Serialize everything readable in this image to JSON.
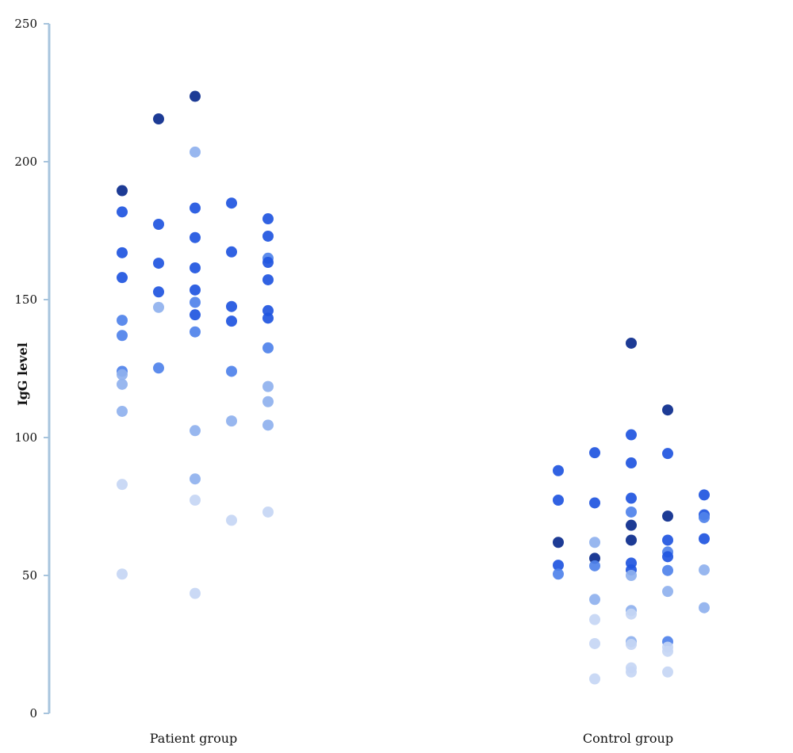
{
  "chart_data": {
    "type": "scatter",
    "title": "",
    "xlabel": "",
    "ylabel": "IgG level",
    "ylim": [
      0,
      250
    ],
    "yticks": [
      0,
      50,
      100,
      150,
      200,
      250
    ],
    "categories": [
      "Patient group",
      "Control group"
    ],
    "grid": false,
    "legend": "none",
    "colors": {
      "axis": "#a7c4dd",
      "dark": "#0a2a8c",
      "mid": "#1f55e0",
      "medium": "#4f82ea",
      "light": "#8fb1ee",
      "pale": "#c5d6f4"
    },
    "series": [
      {
        "category": "Patient group",
        "points": [
          {
            "col": 1,
            "y": 189.5,
            "shade": "dark"
          },
          {
            "col": 1,
            "y": 181.8,
            "shade": "mid"
          },
          {
            "col": 1,
            "y": 167.0,
            "shade": "mid"
          },
          {
            "col": 1,
            "y": 158.0,
            "shade": "mid"
          },
          {
            "col": 1,
            "y": 142.5,
            "shade": "medium"
          },
          {
            "col": 1,
            "y": 137.0,
            "shade": "medium"
          },
          {
            "col": 1,
            "y": 124.0,
            "shade": "medium"
          },
          {
            "col": 1,
            "y": 122.8,
            "shade": "light"
          },
          {
            "col": 1,
            "y": 119.3,
            "shade": "light"
          },
          {
            "col": 1,
            "y": 109.5,
            "shade": "light"
          },
          {
            "col": 1,
            "y": 83.0,
            "shade": "pale"
          },
          {
            "col": 1,
            "y": 50.5,
            "shade": "pale"
          },
          {
            "col": 2,
            "y": 215.5,
            "shade": "dark"
          },
          {
            "col": 2,
            "y": 177.3,
            "shade": "mid"
          },
          {
            "col": 2,
            "y": 163.2,
            "shade": "mid"
          },
          {
            "col": 2,
            "y": 152.8,
            "shade": "mid"
          },
          {
            "col": 2,
            "y": 147.2,
            "shade": "light"
          },
          {
            "col": 2,
            "y": 125.2,
            "shade": "medium"
          },
          {
            "col": 3,
            "y": 223.7,
            "shade": "dark"
          },
          {
            "col": 3,
            "y": 203.5,
            "shade": "light"
          },
          {
            "col": 3,
            "y": 183.2,
            "shade": "mid"
          },
          {
            "col": 3,
            "y": 172.5,
            "shade": "mid"
          },
          {
            "col": 3,
            "y": 161.5,
            "shade": "mid"
          },
          {
            "col": 3,
            "y": 153.5,
            "shade": "mid"
          },
          {
            "col": 3,
            "y": 149.0,
            "shade": "medium"
          },
          {
            "col": 3,
            "y": 144.5,
            "shade": "mid"
          },
          {
            "col": 3,
            "y": 138.3,
            "shade": "medium"
          },
          {
            "col": 3,
            "y": 102.5,
            "shade": "light"
          },
          {
            "col": 3,
            "y": 85.0,
            "shade": "light"
          },
          {
            "col": 3,
            "y": 77.3,
            "shade": "pale"
          },
          {
            "col": 3,
            "y": 43.5,
            "shade": "pale"
          },
          {
            "col": 4,
            "y": 185.0,
            "shade": "mid"
          },
          {
            "col": 4,
            "y": 167.3,
            "shade": "mid"
          },
          {
            "col": 4,
            "y": 147.5,
            "shade": "mid"
          },
          {
            "col": 4,
            "y": 142.2,
            "shade": "mid"
          },
          {
            "col": 4,
            "y": 124.0,
            "shade": "medium"
          },
          {
            "col": 4,
            "y": 106.0,
            "shade": "light"
          },
          {
            "col": 4,
            "y": 70.0,
            "shade": "pale"
          },
          {
            "col": 5,
            "y": 179.3,
            "shade": "mid"
          },
          {
            "col": 5,
            "y": 173.0,
            "shade": "mid"
          },
          {
            "col": 5,
            "y": 165.0,
            "shade": "medium"
          },
          {
            "col": 5,
            "y": 163.5,
            "shade": "mid"
          },
          {
            "col": 5,
            "y": 157.2,
            "shade": "mid"
          },
          {
            "col": 5,
            "y": 146.0,
            "shade": "mid"
          },
          {
            "col": 5,
            "y": 143.3,
            "shade": "mid"
          },
          {
            "col": 5,
            "y": 132.5,
            "shade": "medium"
          },
          {
            "col": 5,
            "y": 118.5,
            "shade": "light"
          },
          {
            "col": 5,
            "y": 113.0,
            "shade": "light"
          },
          {
            "col": 5,
            "y": 104.5,
            "shade": "light"
          },
          {
            "col": 5,
            "y": 73.0,
            "shade": "pale"
          }
        ]
      },
      {
        "category": "Control group",
        "points": [
          {
            "col": 1,
            "y": 88.0,
            "shade": "mid"
          },
          {
            "col": 1,
            "y": 77.3,
            "shade": "mid"
          },
          {
            "col": 1,
            "y": 62.0,
            "shade": "dark"
          },
          {
            "col": 1,
            "y": 53.7,
            "shade": "mid"
          },
          {
            "col": 1,
            "y": 50.5,
            "shade": "medium"
          },
          {
            "col": 2,
            "y": 94.5,
            "shade": "mid"
          },
          {
            "col": 2,
            "y": 76.3,
            "shade": "mid"
          },
          {
            "col": 2,
            "y": 62.0,
            "shade": "light"
          },
          {
            "col": 2,
            "y": 56.2,
            "shade": "dark"
          },
          {
            "col": 2,
            "y": 53.5,
            "shade": "medium"
          },
          {
            "col": 2,
            "y": 41.3,
            "shade": "light"
          },
          {
            "col": 2,
            "y": 34.0,
            "shade": "pale"
          },
          {
            "col": 2,
            "y": 25.3,
            "shade": "pale"
          },
          {
            "col": 2,
            "y": 12.5,
            "shade": "pale"
          },
          {
            "col": 3,
            "y": 134.2,
            "shade": "dark"
          },
          {
            "col": 3,
            "y": 101.0,
            "shade": "mid"
          },
          {
            "col": 3,
            "y": 90.8,
            "shade": "mid"
          },
          {
            "col": 3,
            "y": 78.0,
            "shade": "mid"
          },
          {
            "col": 3,
            "y": 73.0,
            "shade": "medium"
          },
          {
            "col": 3,
            "y": 68.2,
            "shade": "dark"
          },
          {
            "col": 3,
            "y": 62.8,
            "shade": "dark"
          },
          {
            "col": 3,
            "y": 54.5,
            "shade": "mid"
          },
          {
            "col": 3,
            "y": 52.0,
            "shade": "mid"
          },
          {
            "col": 3,
            "y": 50.0,
            "shade": "light"
          },
          {
            "col": 3,
            "y": 37.3,
            "shade": "light"
          },
          {
            "col": 3,
            "y": 36.0,
            "shade": "pale"
          },
          {
            "col": 3,
            "y": 26.0,
            "shade": "light"
          },
          {
            "col": 3,
            "y": 25.0,
            "shade": "pale"
          },
          {
            "col": 3,
            "y": 16.5,
            "shade": "pale"
          },
          {
            "col": 3,
            "y": 15.0,
            "shade": "pale"
          },
          {
            "col": 4,
            "y": 110.0,
            "shade": "dark"
          },
          {
            "col": 4,
            "y": 94.2,
            "shade": "mid"
          },
          {
            "col": 4,
            "y": 71.5,
            "shade": "dark"
          },
          {
            "col": 4,
            "y": 62.8,
            "shade": "mid"
          },
          {
            "col": 4,
            "y": 58.5,
            "shade": "medium"
          },
          {
            "col": 4,
            "y": 56.8,
            "shade": "mid"
          },
          {
            "col": 4,
            "y": 51.8,
            "shade": "medium"
          },
          {
            "col": 4,
            "y": 44.2,
            "shade": "light"
          },
          {
            "col": 4,
            "y": 26.0,
            "shade": "medium"
          },
          {
            "col": 4,
            "y": 24.0,
            "shade": "pale"
          },
          {
            "col": 4,
            "y": 22.5,
            "shade": "pale"
          },
          {
            "col": 4,
            "y": 15.0,
            "shade": "pale"
          },
          {
            "col": 5,
            "y": 79.2,
            "shade": "mid"
          },
          {
            "col": 5,
            "y": 72.0,
            "shade": "mid"
          },
          {
            "col": 5,
            "y": 71.0,
            "shade": "medium"
          },
          {
            "col": 5,
            "y": 63.3,
            "shade": "mid"
          },
          {
            "col": 5,
            "y": 52.0,
            "shade": "light"
          },
          {
            "col": 5,
            "y": 38.3,
            "shade": "light"
          }
        ]
      }
    ]
  }
}
